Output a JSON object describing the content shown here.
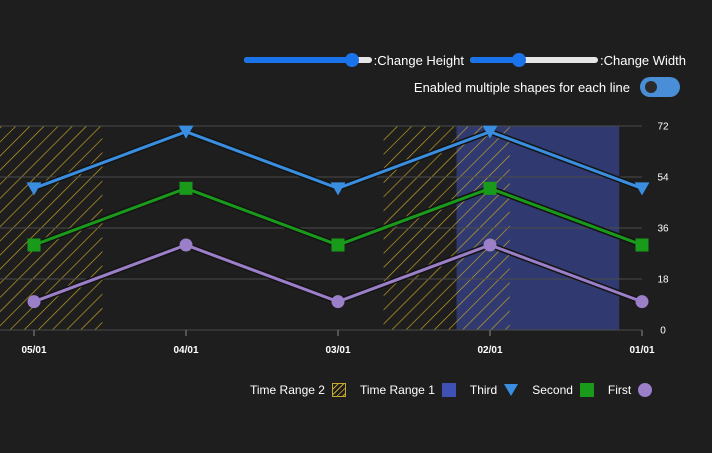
{
  "controls": {
    "height_slider": {
      "label": ":Change Height",
      "value": 0.85
    },
    "width_slider": {
      "label": ":Change Width",
      "value": 0.38
    },
    "toggle": {
      "label": "Enabled multiple shapes for each line",
      "on": false
    }
  },
  "chart_data": {
    "type": "line",
    "x": [
      "05/01",
      "04/01",
      "03/01",
      "02/01",
      "01/01"
    ],
    "ylim": [
      0,
      72
    ],
    "yticks": [
      "0",
      "18",
      "36",
      "54",
      "72"
    ],
    "y_axis_position": "right",
    "grid": true,
    "series": [
      {
        "name": "First",
        "values": [
          10,
          30,
          10,
          30,
          10
        ],
        "color": "#9b7fc8",
        "marker": "circle"
      },
      {
        "name": "Second",
        "values": [
          30,
          50,
          30,
          50,
          30
        ],
        "color": "#1a9a1a",
        "marker": "square"
      },
      {
        "name": "Third",
        "values": [
          50,
          70,
          50,
          70,
          50
        ],
        "color": "#3a8ee0",
        "marker": "triangle-down"
      }
    ],
    "ranges": [
      {
        "name": "Time Range 1",
        "style": "solid",
        "color": "#3f51b5",
        "from": 2.78,
        "to": 3.85
      },
      {
        "name": "Time Range 2",
        "style": "hatch",
        "color": "#c8a828",
        "segments": [
          [
            -0.25,
            0.45
          ],
          [
            2.3,
            3.13
          ]
        ]
      }
    ],
    "legend": [
      "Time Range 2",
      "Time Range 1",
      "Third",
      "Second",
      "First"
    ],
    "legend_position": "bottom"
  }
}
